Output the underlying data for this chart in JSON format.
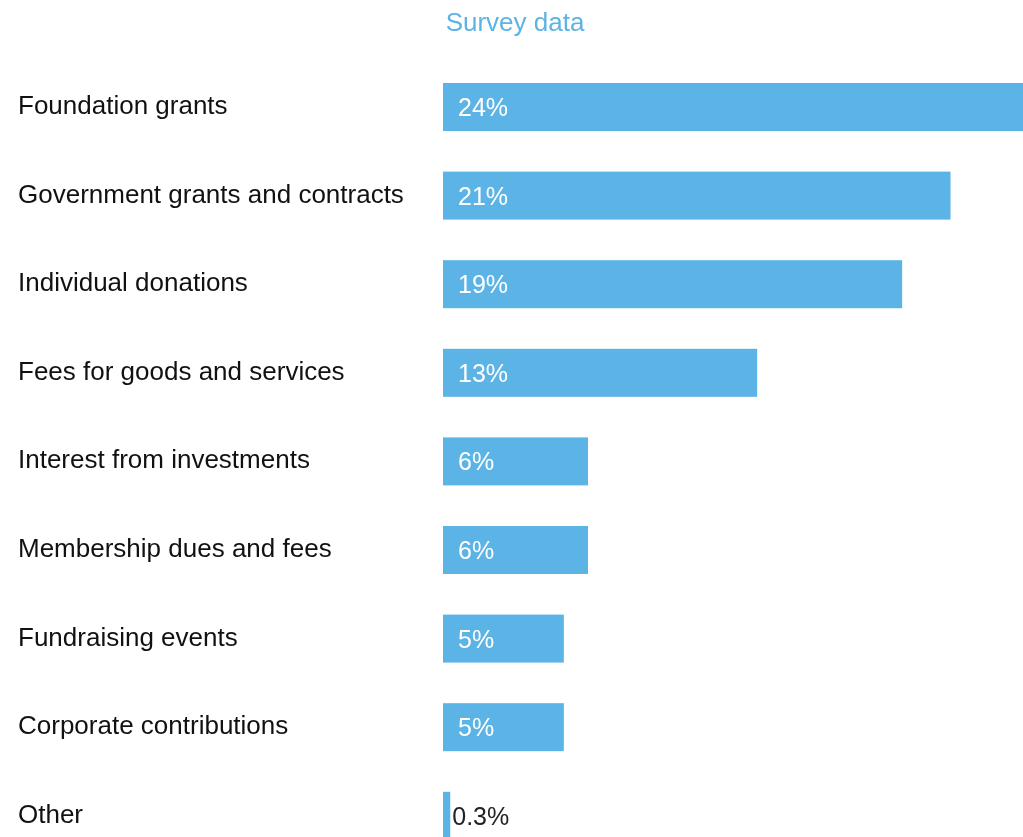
{
  "chart_data": {
    "type": "bar",
    "orientation": "horizontal",
    "title": "Survey data",
    "categories": [
      "Foundation grants",
      "Government grants and contracts",
      "Individual donations",
      "Fees for goods and services",
      "Interest from investments",
      "Membership dues and fees",
      "Fundraising events",
      "Corporate contributions",
      "Other"
    ],
    "values": [
      24,
      21,
      19,
      13,
      6,
      6,
      5,
      5,
      0.3
    ],
    "value_labels": [
      "24%",
      "21%",
      "19%",
      "13%",
      "6%",
      "6%",
      "5%",
      "5%",
      "0.3%"
    ],
    "color": "#5bb4e5",
    "xlim": [
      0,
      24
    ]
  }
}
